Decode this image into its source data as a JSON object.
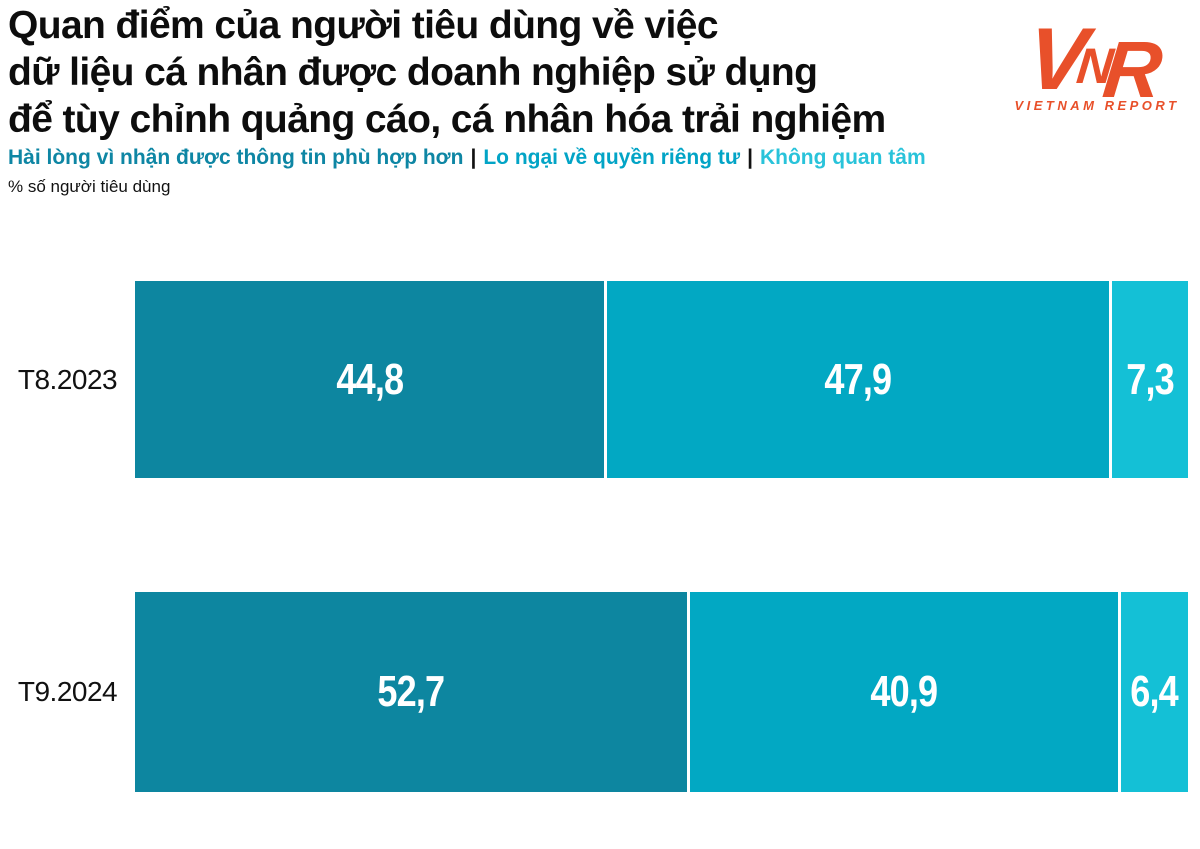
{
  "header": {
    "title_lines": [
      "Quan điểm của người tiêu dùng về việc",
      "dữ liệu cá nhân được doanh nghiệp sử dụng",
      "để tùy chỉnh quảng cáo, cá nhân hóa trải nghiệm"
    ],
    "unit_label": "% số người tiêu dùng"
  },
  "logo": {
    "letters": [
      "V",
      "N",
      "R"
    ],
    "caption": "VIETNAM REPORT",
    "color": "#e8502a"
  },
  "legend": {
    "separator": "|",
    "separator_color": "#111111",
    "items": [
      {
        "label": "Hài lòng vì nhận được thông tin phù hợp hơn",
        "color": "#0e86a4"
      },
      {
        "label": "Lo ngại về quyền riêng tư",
        "color": "#02a4c6"
      },
      {
        "label": "Không quan tâm",
        "color": "#29c3da"
      }
    ]
  },
  "chart_data": {
    "type": "bar",
    "orientation": "horizontal",
    "stacked": true,
    "grid": false,
    "legend_position": "top",
    "title": "Quan điểm của người tiêu dùng về việc dữ liệu cá nhân được doanh nghiệp sử dụng để tùy chỉnh quảng cáo, cá nhân hóa trải nghiệm",
    "unit": "% số người tiêu dùng",
    "xlim": [
      0,
      100
    ],
    "categories": [
      "T8.2023",
      "T9.2024"
    ],
    "series": [
      {
        "name": "Hài lòng vì nhận được thông tin phù hợp hơn",
        "color": "#0d86a0",
        "values": [
          44.8,
          52.7
        ],
        "labels": [
          "44,8",
          "52,7"
        ]
      },
      {
        "name": "Lo ngại về quyền riêng tư",
        "color": "#02a8c3",
        "values": [
          47.9,
          40.9
        ],
        "labels": [
          "47,9",
          "40,9"
        ]
      },
      {
        "name": "Không quan tâm",
        "color": "#14c0d6",
        "values": [
          7.3,
          6.4
        ],
        "labels": [
          "7,3",
          "6,4"
        ]
      }
    ],
    "value_label_color": "#ffffff"
  }
}
